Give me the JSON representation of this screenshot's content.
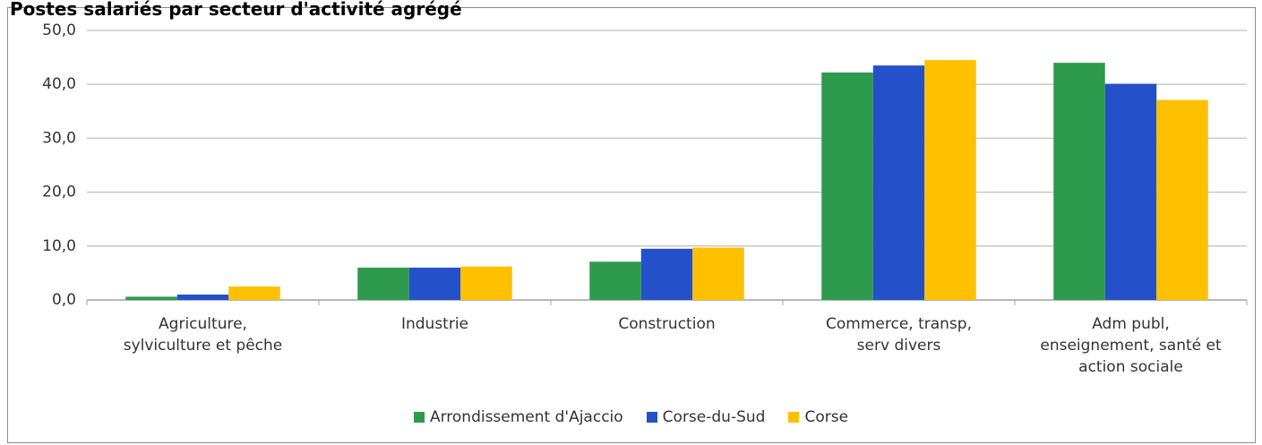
{
  "chart_data": {
    "type": "bar",
    "title": "Postes salariés par secteur d'activité agrégé",
    "categories": [
      "Agriculture,\nsylviculture et pêche",
      "Industrie",
      "Construction",
      "Commerce, transp,\nserv divers",
      "Adm publ,\nenseignement, santé et\naction sociale"
    ],
    "series": [
      {
        "name": "Arrondissement d'Ajaccio",
        "color": "#2e9a4e",
        "values": [
          0.6,
          6.0,
          7.1,
          42.2,
          44.0
        ]
      },
      {
        "name": "Corse-du-Sud",
        "color": "#2451c9",
        "values": [
          1.0,
          6.0,
          9.5,
          43.5,
          40.1
        ]
      },
      {
        "name": "Corse",
        "color": "#ffc000",
        "values": [
          2.5,
          6.2,
          9.7,
          44.5,
          37.1
        ]
      }
    ],
    "ylim": [
      0,
      50
    ],
    "yticks": [
      {
        "value": 0,
        "label": "0,0"
      },
      {
        "value": 10,
        "label": "10,0"
      },
      {
        "value": 20,
        "label": "20,0"
      },
      {
        "value": 30,
        "label": "30,0"
      },
      {
        "value": 40,
        "label": "40,0"
      },
      {
        "value": 50,
        "label": "50,0"
      }
    ],
    "grid": true,
    "legend": "bottom"
  }
}
